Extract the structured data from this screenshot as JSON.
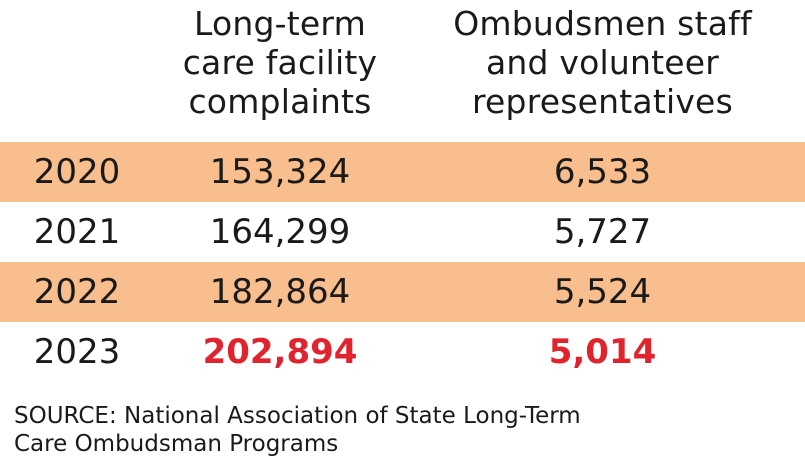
{
  "chart_data": {
    "type": "table",
    "columns": [
      {
        "header_lines": [
          "Long-term",
          "care facility",
          "complaints"
        ]
      },
      {
        "header_lines": [
          "Ombudsmen staff",
          "and volunteer",
          "representatives"
        ]
      }
    ],
    "rows": [
      {
        "year": "2020",
        "complaints": "153,324",
        "representatives": "6,533",
        "shaded": true,
        "highlight": false
      },
      {
        "year": "2021",
        "complaints": "164,299",
        "representatives": "5,727",
        "shaded": false,
        "highlight": false
      },
      {
        "year": "2022",
        "complaints": "182,864",
        "representatives": "5,524",
        "shaded": true,
        "highlight": false
      },
      {
        "year": "2023",
        "complaints": "202,894",
        "representatives": "5,014",
        "shaded": false,
        "highlight": true
      }
    ],
    "colors": {
      "row_shade": "#f8be8e",
      "highlight": "#e0232c",
      "text": "#1a1a1a"
    }
  },
  "source_lines": [
    "SOURCE: National Association of State Long-Term",
    "Care Ombudsman Programs"
  ]
}
